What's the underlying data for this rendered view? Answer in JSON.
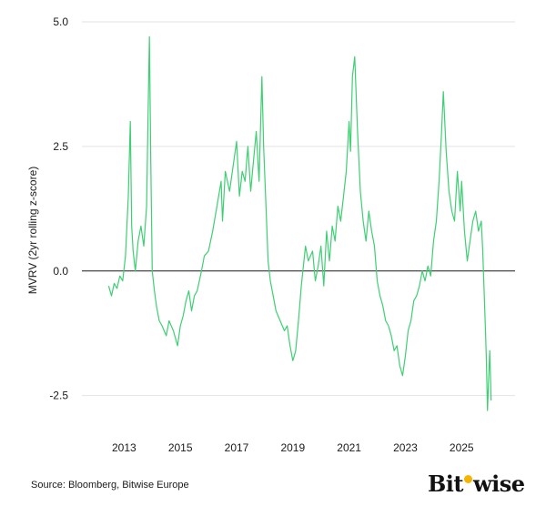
{
  "chart_data": {
    "type": "line",
    "title": "",
    "xlabel": "",
    "ylabel": "MVRV (2yr rolling z-score)",
    "xlim": [
      2011.5,
      2026.9
    ],
    "ylim": [
      -3.0,
      5.0
    ],
    "yticks": [
      5.0,
      2.5,
      0.0,
      -2.5
    ],
    "ytick_labels": [
      "5.0",
      "2.5",
      "0.0",
      "-2.5"
    ],
    "xticks": [
      2013,
      2015,
      2017,
      2019,
      2021,
      2023,
      2025
    ],
    "xtick_labels": [
      "2013",
      "2015",
      "2017",
      "2019",
      "2021",
      "2023",
      "2025"
    ],
    "grid": true,
    "series": [
      {
        "name": "MVRV z-score",
        "color": "#3ecf73",
        "x": [
          2012.45,
          2012.55,
          2012.65,
          2012.75,
          2012.85,
          2012.95,
          2013.05,
          2013.15,
          2013.22,
          2013.27,
          2013.32,
          2013.4,
          2013.5,
          2013.6,
          2013.7,
          2013.8,
          2013.85,
          2013.9,
          2013.95,
          2014.0,
          2014.08,
          2014.15,
          2014.25,
          2014.35,
          2014.5,
          2014.6,
          2014.75,
          2014.9,
          2015.0,
          2015.1,
          2015.2,
          2015.3,
          2015.4,
          2015.5,
          2015.6,
          2015.75,
          2015.85,
          2016.0,
          2016.15,
          2016.3,
          2016.45,
          2016.5,
          2016.6,
          2016.75,
          2016.9,
          2017.0,
          2017.1,
          2017.2,
          2017.3,
          2017.4,
          2017.5,
          2017.6,
          2017.7,
          2017.8,
          2017.9,
          2017.96,
          2018.05,
          2018.12,
          2018.2,
          2018.3,
          2018.4,
          2018.55,
          2018.7,
          2018.8,
          2018.9,
          2019.0,
          2019.1,
          2019.2,
          2019.3,
          2019.45,
          2019.55,
          2019.7,
          2019.8,
          2019.9,
          2020.0,
          2020.1,
          2020.2,
          2020.3,
          2020.4,
          2020.5,
          2020.6,
          2020.7,
          2020.8,
          2020.9,
          2021.0,
          2021.05,
          2021.12,
          2021.2,
          2021.3,
          2021.4,
          2021.5,
          2021.6,
          2021.7,
          2021.8,
          2021.9,
          2022.0,
          2022.1,
          2022.2,
          2022.3,
          2022.4,
          2022.5,
          2022.6,
          2022.7,
          2022.8,
          2022.9,
          2023.0,
          2023.1,
          2023.2,
          2023.3,
          2023.4,
          2023.5,
          2023.6,
          2023.7,
          2023.8,
          2023.9,
          2024.0,
          2024.1,
          2024.2,
          2024.28,
          2024.35,
          2024.45,
          2024.55,
          2024.65,
          2024.75,
          2024.85,
          2024.95,
          2025.0,
          2025.1,
          2025.2,
          2025.3,
          2025.4,
          2025.5,
          2025.6,
          2025.7,
          2025.75,
          2025.8,
          2025.85,
          2025.88,
          2025.92,
          2025.96,
          2026.0,
          2026.05
        ],
        "y": [
          -0.3,
          -0.5,
          -0.25,
          -0.35,
          -0.1,
          -0.2,
          0.3,
          1.5,
          3.0,
          0.9,
          0.4,
          0.0,
          0.6,
          0.9,
          0.5,
          1.3,
          3.0,
          4.7,
          2.2,
          0.0,
          -0.4,
          -0.7,
          -1.0,
          -1.1,
          -1.3,
          -1.0,
          -1.2,
          -1.5,
          -1.1,
          -0.9,
          -0.6,
          -0.4,
          -0.8,
          -0.5,
          -0.4,
          0.0,
          0.3,
          0.4,
          0.8,
          1.3,
          1.8,
          1.0,
          2.0,
          1.6,
          2.2,
          2.6,
          1.5,
          2.0,
          1.8,
          2.5,
          1.6,
          2.2,
          2.8,
          1.8,
          3.9,
          2.5,
          1.2,
          0.2,
          -0.2,
          -0.5,
          -0.8,
          -1.0,
          -1.2,
          -1.1,
          -1.5,
          -1.8,
          -1.6,
          -1.0,
          -0.3,
          0.5,
          0.2,
          0.4,
          -0.2,
          0.1,
          0.5,
          -0.3,
          0.8,
          0.2,
          0.9,
          0.6,
          1.3,
          1.0,
          1.5,
          2.0,
          3.0,
          2.4,
          3.9,
          4.3,
          2.8,
          1.6,
          1.0,
          0.6,
          1.2,
          0.8,
          0.5,
          -0.2,
          -0.5,
          -0.7,
          -1.0,
          -1.1,
          -1.3,
          -1.6,
          -1.5,
          -1.9,
          -2.1,
          -1.7,
          -1.2,
          -1.0,
          -0.6,
          -0.5,
          -0.3,
          0.0,
          -0.2,
          0.1,
          -0.1,
          0.6,
          1.0,
          1.8,
          2.7,
          3.6,
          2.4,
          1.6,
          1.2,
          1.0,
          2.0,
          1.2,
          1.8,
          0.8,
          0.2,
          0.6,
          1.0,
          1.2,
          0.8,
          1.0,
          0.4,
          -0.4,
          -1.2,
          -1.8,
          -2.8,
          -2.2,
          -1.6,
          -2.6
        ]
      }
    ]
  },
  "footer": {
    "source": "Source: Bloomberg, Bitwise Europe",
    "brand_logo_text": "Bitwise"
  }
}
